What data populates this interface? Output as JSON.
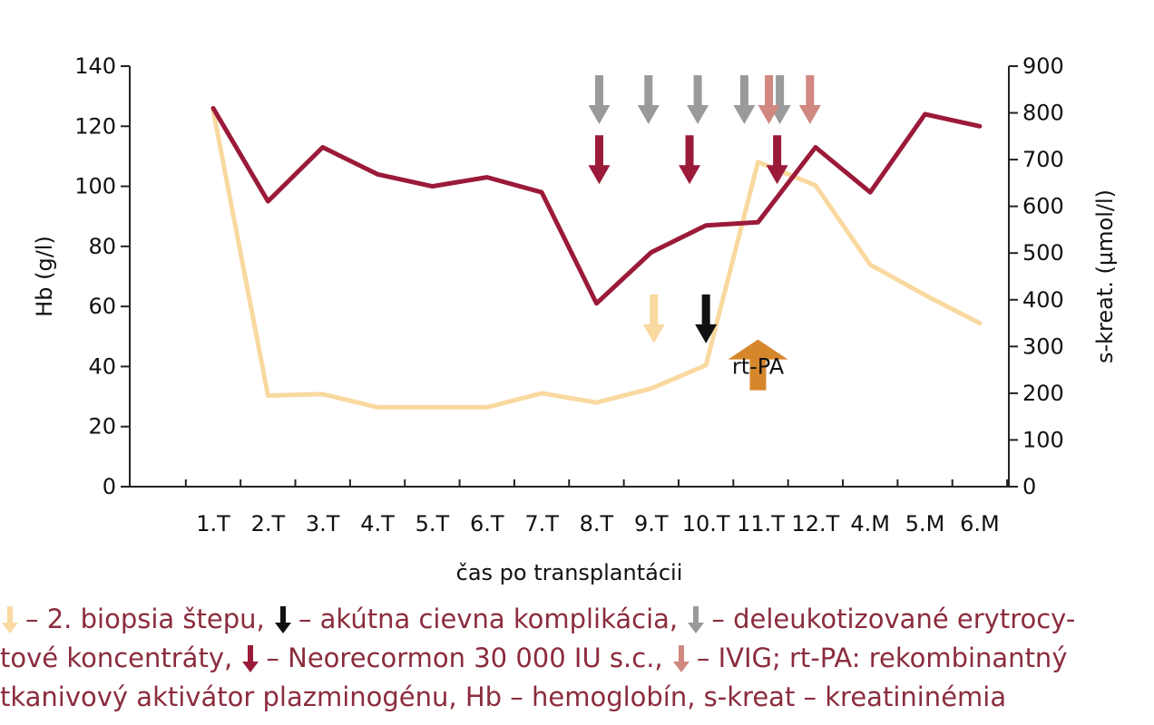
{
  "chart_data": {
    "type": "line",
    "categories": [
      "1.T",
      "2.T",
      "3.T",
      "4.T",
      "5.T",
      "6.T",
      "7.T",
      "8.T",
      "9.T",
      "10.T",
      "11.T",
      "12.T",
      "4.M",
      "5.M",
      "6.M"
    ],
    "xlabel": "čas po transplantácii",
    "ylabel_left": "Hb (g/l)",
    "ylabel_right": "s-kreat. (µmol/l)",
    "ylim_left": [
      0,
      140
    ],
    "ylim_right": [
      0,
      900
    ],
    "yticks_left": [
      "0",
      "20",
      "40",
      "60",
      "80",
      "100",
      "120",
      "140"
    ],
    "yticks_right": [
      "0",
      "100",
      "200",
      "300",
      "400",
      "500",
      "600",
      "700",
      "800",
      "900"
    ],
    "grid": false,
    "series": [
      {
        "name": "Hb",
        "axis": "left",
        "color": "#9b1a3a",
        "x": [
          1.0,
          2.0,
          3.0,
          4.0,
          5.0,
          6.0,
          7.0,
          8.0,
          9.0,
          10.0,
          10.95,
          12.0,
          13.0,
          14.0,
          15.0
        ],
        "values": [
          126,
          95,
          113,
          104,
          100,
          103,
          98,
          61,
          78,
          87,
          88,
          113,
          98,
          124,
          120
        ]
      },
      {
        "name": "s-kreat",
        "axis": "right",
        "color": "#f9d9a0",
        "x": [
          1.0,
          2.0,
          3.0,
          4.0,
          5.0,
          6.0,
          7.0,
          8.0,
          9.0,
          10.0,
          10.95,
          12.0,
          13.0,
          14.0,
          15.0
        ],
        "values": [
          805,
          195,
          198,
          170,
          170,
          170,
          200,
          180,
          210,
          260,
          695,
          645,
          475,
          410,
          350
        ]
      }
    ],
    "markers": [
      {
        "kind": "deleukotizovane",
        "color": "#9a9a9a",
        "x": 8.05,
        "y": 137,
        "size": "s",
        "dir": "down"
      },
      {
        "kind": "deleukotizovane",
        "color": "#9a9a9a",
        "x": 8.95,
        "y": 137,
        "size": "s",
        "dir": "down"
      },
      {
        "kind": "deleukotizovane",
        "color": "#9a9a9a",
        "x": 9.85,
        "y": 137,
        "size": "s",
        "dir": "down"
      },
      {
        "kind": "deleukotizovane",
        "color": "#9a9a9a",
        "x": 10.7,
        "y": 137,
        "size": "s",
        "dir": "down"
      },
      {
        "kind": "deleukotizovane",
        "color": "#9a9a9a",
        "x": 11.35,
        "y": 137,
        "size": "s",
        "dir": "down"
      },
      {
        "kind": "IVIG",
        "color": "#d08880",
        "x": 11.15,
        "y": 137,
        "size": "s",
        "dir": "down"
      },
      {
        "kind": "IVIG",
        "color": "#d08880",
        "x": 11.9,
        "y": 137,
        "size": "s",
        "dir": "down"
      },
      {
        "kind": "Neorecormon",
        "color": "#9b1a3a",
        "x": 8.05,
        "y": 117,
        "size": "s",
        "dir": "down"
      },
      {
        "kind": "Neorecormon",
        "color": "#9b1a3a",
        "x": 9.7,
        "y": 117,
        "size": "s",
        "dir": "down"
      },
      {
        "kind": "Neorecormon",
        "color": "#9b1a3a",
        "x": 11.3,
        "y": 117,
        "size": "s",
        "dir": "down"
      },
      {
        "kind": "biopsia",
        "color": "#f9d9a0",
        "x": 9.05,
        "y": 64,
        "size": "s",
        "dir": "down"
      },
      {
        "kind": "cievna",
        "color": "#111111",
        "x": 10.0,
        "y": 64,
        "size": "s",
        "dir": "down"
      },
      {
        "kind": "rt-PA",
        "color": "#d6862b",
        "x": 10.95,
        "y": 49,
        "size": "l",
        "dir": "up"
      }
    ],
    "annotations": [
      {
        "text": "rt-PA",
        "x": 10.95,
        "y": 40
      }
    ]
  },
  "legend": {
    "lines": [
      [
        {
          "arrow": "#f9d9a0",
          "text": "– 2. biopsia štepu, "
        },
        {
          "arrow": "#111111",
          "text": "– akútna cievna komplikácia, "
        },
        {
          "arrow": "#9a9a9a",
          "text": "– deleukotizované erytrocy-"
        }
      ],
      [
        {
          "text": "tové koncentráty, "
        },
        {
          "arrow": "#9b1a3a",
          "text": "– Neorecormon 30 000 IU s.c., "
        },
        {
          "arrow": "#d08880",
          "text": "– IVIG; rt-PA: rekombinantný"
        }
      ],
      [
        {
          "text": "tkanivový aktivátor plazminogénu, Hb – hemoglobín, s-kreat – kreatininémia"
        }
      ]
    ]
  }
}
